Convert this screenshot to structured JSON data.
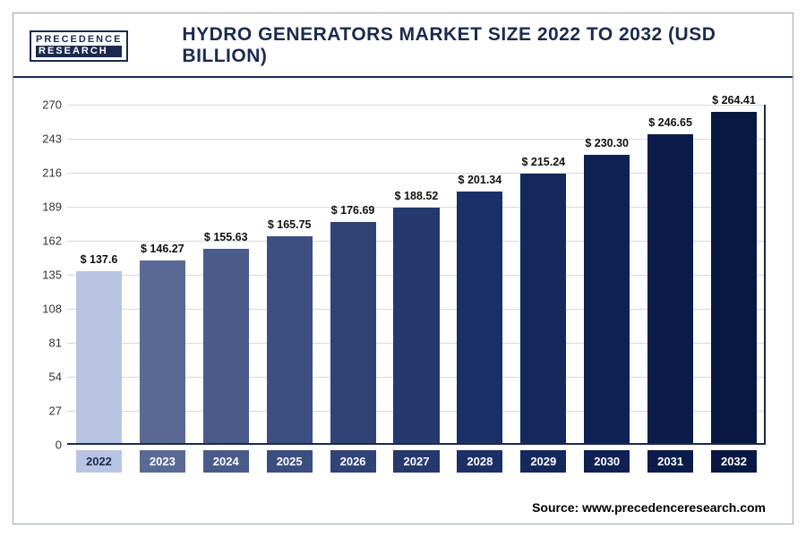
{
  "logo": {
    "line1": "PRECEDENCE",
    "line2": "RESEARCH"
  },
  "title": "HYDRO GENERATORS MARKET SIZE 2022 TO 2032 (USD BILLION)",
  "source_label": "Source:",
  "source_url": "www.precedenceresearch.com",
  "chart": {
    "type": "bar",
    "background_color": "#ffffff",
    "grid_color": "#d6d9e0",
    "axis_color": "#1b2a4e",
    "title_color": "#1b2a4e",
    "title_fontsize": 21,
    "label_fontsize": 13,
    "value_fontsize": 12.5,
    "ylim": [
      0,
      270
    ],
    "ytick_step": 27,
    "yticks": [
      0,
      27,
      54,
      81,
      108,
      135,
      162,
      189,
      216,
      243,
      270
    ],
    "bar_width": 0.72,
    "years": [
      "2022",
      "2023",
      "2024",
      "2025",
      "2026",
      "2027",
      "2028",
      "2029",
      "2030",
      "2031",
      "2032"
    ],
    "values": [
      137.6,
      146.27,
      155.63,
      165.75,
      176.69,
      188.52,
      201.34,
      215.24,
      230.3,
      246.65,
      264.41
    ],
    "value_labels": [
      "$ 137.6",
      "$ 146.27",
      "$ 155.63",
      "$ 165.75",
      "$ 176.69",
      "$ 188.52",
      "$ 201.34",
      "$ 215.24",
      "$ 230.30",
      "$ 246.65",
      "$ 264.41"
    ],
    "bar_colors": [
      "#b8c4e2",
      "#5a6a95",
      "#4a5b8a",
      "#3c4e80",
      "#304276",
      "#25396e",
      "#1b3066",
      "#14285d",
      "#0f2153",
      "#0b1c4b",
      "#081842"
    ],
    "x_label_bg": [
      "#b8c4e2",
      "#5a6a95",
      "#4a5b8a",
      "#3c4e80",
      "#304276",
      "#25396e",
      "#1b3066",
      "#14285d",
      "#0f2153",
      "#0b1c4b",
      "#081842"
    ],
    "x_label_text_color_first": "#1b2a4e"
  }
}
